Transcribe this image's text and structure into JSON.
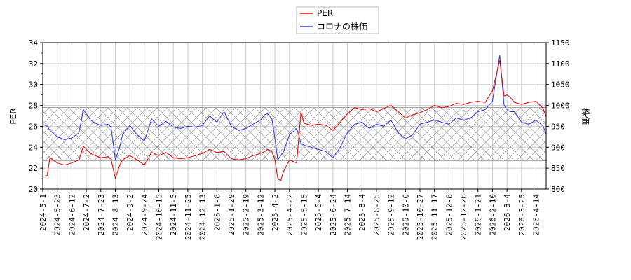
{
  "chart_data": {
    "type": "line",
    "title": "",
    "legend": {
      "placement": "top-center",
      "entries": [
        "PER",
        "コロナの株価"
      ]
    },
    "grid": true,
    "x_tick_labels": [
      "2024-5-1",
      "2024-5-23",
      "2024-6-12",
      "2024-7-2",
      "2024-7-23",
      "2024-8-13",
      "2024-9-2",
      "2024-9-24",
      "2024-10-15",
      "2024-11-5",
      "2024-11-25",
      "2024-12-13",
      "2025-1-8",
      "2025-1-29",
      "2025-2-19",
      "2025-3-12",
      "2025-4-2",
      "2025-4-22",
      "2025-5-15",
      "2025-6-4",
      "2025-6-24",
      "2025-7-14",
      "2025-8-4",
      "2025-8-25",
      "2025-9-12",
      "2025-10-6",
      "2025-10-27",
      "2025-11-17",
      "2025-12-8",
      "2025-12-26",
      "2026-1-21",
      "2026-2-10",
      "2026-3-4",
      "2026-3-25",
      "2026-4-14"
    ],
    "y_left": {
      "label": "PER",
      "range": [
        20,
        34
      ],
      "ticks": [
        "20",
        "22",
        "24",
        "26",
        "28",
        "30",
        "32",
        "34"
      ]
    },
    "y_right": {
      "label": "株価",
      "range": [
        800,
        1150
      ],
      "ticks": [
        "800",
        "850",
        "900",
        "950",
        "1000",
        "1050",
        "1100",
        "1150"
      ]
    },
    "band": {
      "axis": "left",
      "from": 22.7,
      "to": 27.8,
      "pattern": "crosshatch"
    },
    "x_range": [
      0,
      34.7
    ],
    "series": [
      {
        "name": "PER",
        "axis": "left",
        "color": "#dd0000",
        "x": [
          0.0,
          0.3,
          0.5,
          1.0,
          1.5,
          2.0,
          2.5,
          2.8,
          3.0,
          3.3,
          3.6,
          4.0,
          4.5,
          4.7,
          5.0,
          5.3,
          5.5,
          6.0,
          6.5,
          7.0,
          7.3,
          7.5,
          8.0,
          8.5,
          9.0,
          9.5,
          10.0,
          10.5,
          11.0,
          11.5,
          12.0,
          12.5,
          13.0,
          13.5,
          14.0,
          14.5,
          15.0,
          15.3,
          15.5,
          15.8,
          16.0,
          16.2,
          16.4,
          16.6,
          17.0,
          17.5,
          17.8,
          18.0,
          18.5,
          19.0,
          19.5,
          20.0,
          20.5,
          21.0,
          21.5,
          22.0,
          22.5,
          23.0,
          23.5,
          24.0,
          24.5,
          25.0,
          25.5,
          26.0,
          26.5,
          27.0,
          27.5,
          28.0,
          28.5,
          29.0,
          29.5,
          30.0,
          30.5,
          31.0,
          31.5,
          31.8,
          32.0,
          32.2,
          32.5,
          33.0,
          33.5,
          34.0,
          34.5,
          34.7
        ],
        "y": [
          21.2,
          21.3,
          23.0,
          22.5,
          22.3,
          22.5,
          22.8,
          24.1,
          23.8,
          23.4,
          23.2,
          23.0,
          23.1,
          22.9,
          21.0,
          22.3,
          22.8,
          23.2,
          22.8,
          22.3,
          23.0,
          23.5,
          23.2,
          23.5,
          23.0,
          22.9,
          23.0,
          23.2,
          23.4,
          23.8,
          23.5,
          23.6,
          22.9,
          22.8,
          22.9,
          23.2,
          23.4,
          23.6,
          23.8,
          23.6,
          22.8,
          21.0,
          20.8,
          21.7,
          22.8,
          22.5,
          27.4,
          26.3,
          26.1,
          26.2,
          26.1,
          25.6,
          26.4,
          27.2,
          27.8,
          27.6,
          27.7,
          27.4,
          27.7,
          28.0,
          27.4,
          26.8,
          27.1,
          27.3,
          27.6,
          28.0,
          27.8,
          27.9,
          28.2,
          28.1,
          28.3,
          28.4,
          28.3,
          29.4,
          32.3,
          28.9,
          29.0,
          28.8,
          28.3,
          28.1,
          28.3,
          28.4,
          27.7,
          26.9
        ]
      },
      {
        "name": "コロナの株価",
        "axis": "right",
        "color": "#3333dd",
        "x": [
          0.0,
          0.3,
          0.5,
          1.0,
          1.5,
          2.0,
          2.5,
          2.8,
          3.0,
          3.3,
          3.6,
          4.0,
          4.5,
          4.7,
          5.0,
          5.3,
          5.5,
          6.0,
          6.5,
          7.0,
          7.3,
          7.5,
          8.0,
          8.5,
          9.0,
          9.5,
          10.0,
          10.5,
          11.0,
          11.5,
          12.0,
          12.5,
          13.0,
          13.5,
          14.0,
          14.5,
          15.0,
          15.3,
          15.5,
          15.8,
          16.0,
          16.2,
          16.4,
          16.6,
          17.0,
          17.5,
          17.8,
          18.0,
          18.5,
          19.0,
          19.5,
          20.0,
          20.5,
          21.0,
          21.5,
          22.0,
          22.5,
          23.0,
          23.5,
          24.0,
          24.5,
          25.0,
          25.5,
          26.0,
          26.5,
          27.0,
          27.5,
          28.0,
          28.5,
          29.0,
          29.5,
          30.0,
          30.5,
          31.0,
          31.5,
          31.8,
          32.0,
          32.2,
          32.5,
          33.0,
          33.5,
          34.0,
          34.5,
          34.7
        ],
        "y": [
          955,
          950,
          940,
          925,
          918,
          922,
          935,
          990,
          980,
          965,
          958,
          952,
          955,
          948,
          870,
          900,
          930,
          952,
          930,
          915,
          945,
          968,
          950,
          962,
          948,
          945,
          950,
          948,
          952,
          975,
          960,
          985,
          950,
          940,
          945,
          955,
          965,
          978,
          980,
          968,
          920,
          870,
          880,
          890,
          930,
          945,
          910,
          905,
          900,
          895,
          890,
          875,
          900,
          935,
          955,
          960,
          945,
          955,
          950,
          965,
          935,
          920,
          930,
          955,
          960,
          965,
          960,
          955,
          970,
          965,
          970,
          985,
          990,
          1010,
          1120,
          1000,
          990,
          985,
          985,
          960,
          955,
          965,
          950,
          930
        ]
      }
    ]
  }
}
